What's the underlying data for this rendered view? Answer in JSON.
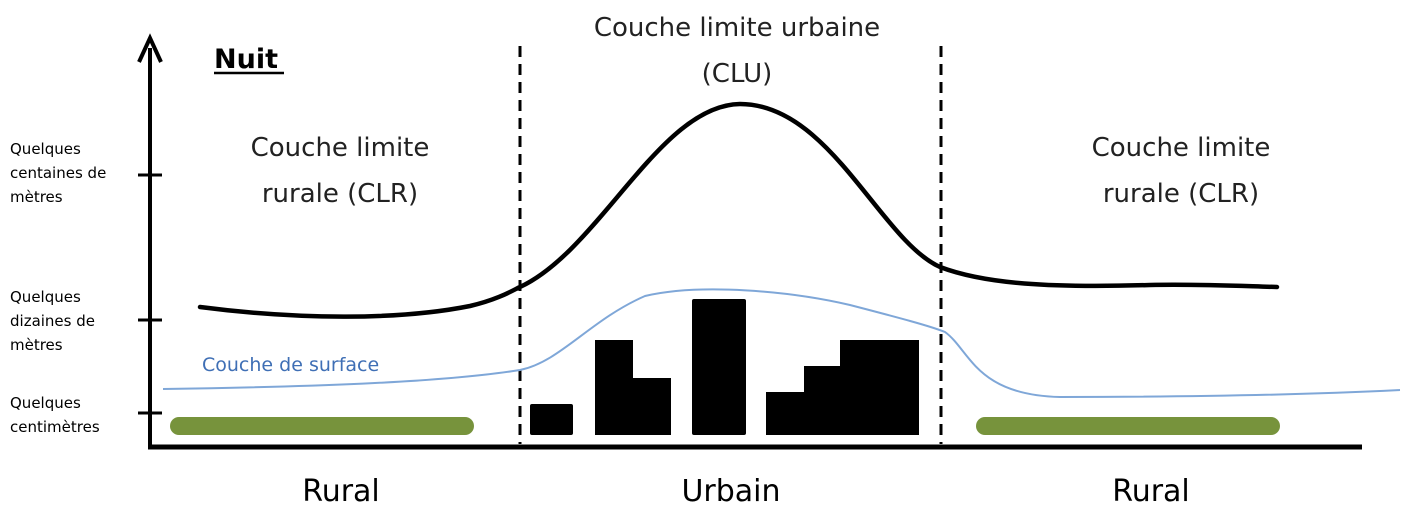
{
  "diagram": {
    "night_label": "Nuit",
    "clu_label_line1": "Couche limite urbaine",
    "clu_label_line2": "(CLU)",
    "clr_left_line1": "Couche limite",
    "clr_left_line2": "rurale (CLR)",
    "clr_right_line1": "Couche limite",
    "clr_right_line2": "rurale (CLR)",
    "surface_layer_label": "Couche de surface",
    "y_ticks": [
      [
        "Quelques",
        "centaines de",
        "mètres"
      ],
      [
        "Quelques",
        "dizaines de",
        "mètres"
      ],
      [
        "Quelques",
        "centimètres"
      ]
    ],
    "zones": [
      "Rural",
      "Urbain",
      "Rural"
    ],
    "colors": {
      "axis": "#000000",
      "boundary_layer": "#000000",
      "surface_layer": "#7fa7d8",
      "surface_label": "#3f6fb5",
      "vegetation": "#77933c",
      "buildings": "#000000"
    }
  }
}
